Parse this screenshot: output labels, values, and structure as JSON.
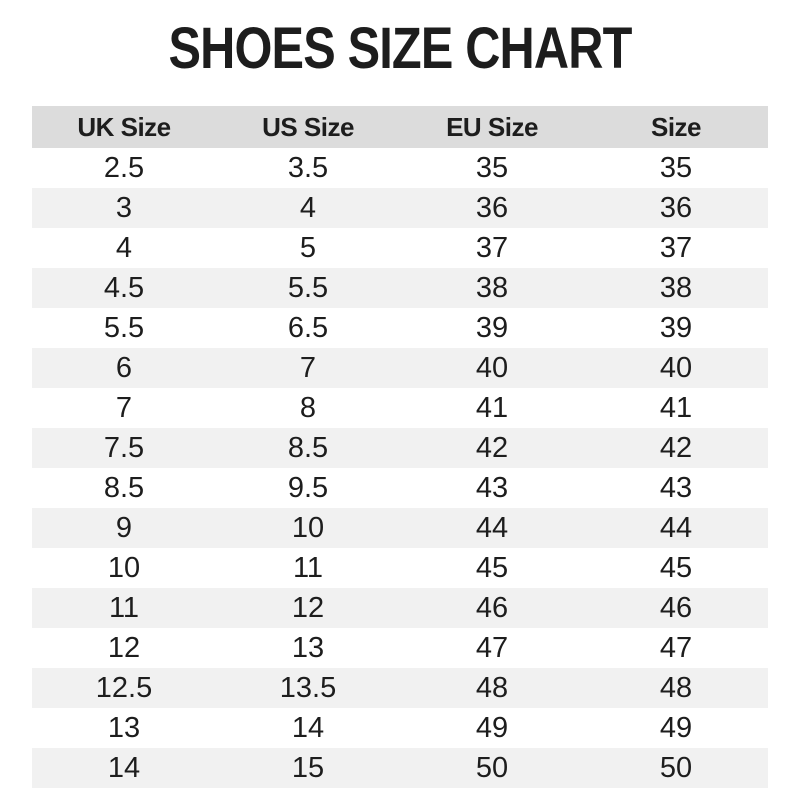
{
  "title": "SHOES SIZE CHART",
  "table": {
    "columns": [
      "UK Size",
      "US Size",
      "EU Size",
      "Size"
    ],
    "rows": [
      [
        "2.5",
        "3.5",
        "35",
        "35"
      ],
      [
        "3",
        "4",
        "36",
        "36"
      ],
      [
        "4",
        "5",
        "37",
        "37"
      ],
      [
        "4.5",
        "5.5",
        "38",
        "38"
      ],
      [
        "5.5",
        "6.5",
        "39",
        "39"
      ],
      [
        "6",
        "7",
        "40",
        "40"
      ],
      [
        "7",
        "8",
        "41",
        "41"
      ],
      [
        "7.5",
        "8.5",
        "42",
        "42"
      ],
      [
        "8.5",
        "9.5",
        "43",
        "43"
      ],
      [
        "9",
        "10",
        "44",
        "44"
      ],
      [
        "10",
        "11",
        "45",
        "45"
      ],
      [
        "11",
        "12",
        "46",
        "46"
      ],
      [
        "12",
        "13",
        "47",
        "47"
      ],
      [
        "12.5",
        "13.5",
        "48",
        "48"
      ],
      [
        "13",
        "14",
        "49",
        "49"
      ],
      [
        "14",
        "15",
        "50",
        "50"
      ]
    ]
  },
  "colors": {
    "header_bg": "#dcdcdc",
    "row_alt_bg": "#f1f1f1",
    "text": "#1d1d1d"
  },
  "chart_data": {
    "type": "table",
    "title": "SHOES SIZE CHART",
    "columns": [
      "UK Size",
      "US Size",
      "EU Size",
      "Size"
    ],
    "rows": [
      [
        "2.5",
        "3.5",
        "35",
        "35"
      ],
      [
        "3",
        "4",
        "36",
        "36"
      ],
      [
        "4",
        "5",
        "37",
        "37"
      ],
      [
        "4.5",
        "5.5",
        "38",
        "38"
      ],
      [
        "5.5",
        "6.5",
        "39",
        "39"
      ],
      [
        "6",
        "7",
        "40",
        "40"
      ],
      [
        "7",
        "8",
        "41",
        "41"
      ],
      [
        "7.5",
        "8.5",
        "42",
        "42"
      ],
      [
        "8.5",
        "9.5",
        "43",
        "43"
      ],
      [
        "9",
        "10",
        "44",
        "44"
      ],
      [
        "10",
        "11",
        "45",
        "45"
      ],
      [
        "11",
        "12",
        "46",
        "46"
      ],
      [
        "12",
        "13",
        "47",
        "47"
      ],
      [
        "12.5",
        "13.5",
        "48",
        "48"
      ],
      [
        "13",
        "14",
        "49",
        "49"
      ],
      [
        "14",
        "15",
        "50",
        "50"
      ]
    ],
    "layout": {
      "header_background": "#dcdcdc",
      "zebra_striping": true,
      "alt_row_background": "#f1f1f1",
      "text_alignment": "center",
      "grid": "off"
    }
  }
}
